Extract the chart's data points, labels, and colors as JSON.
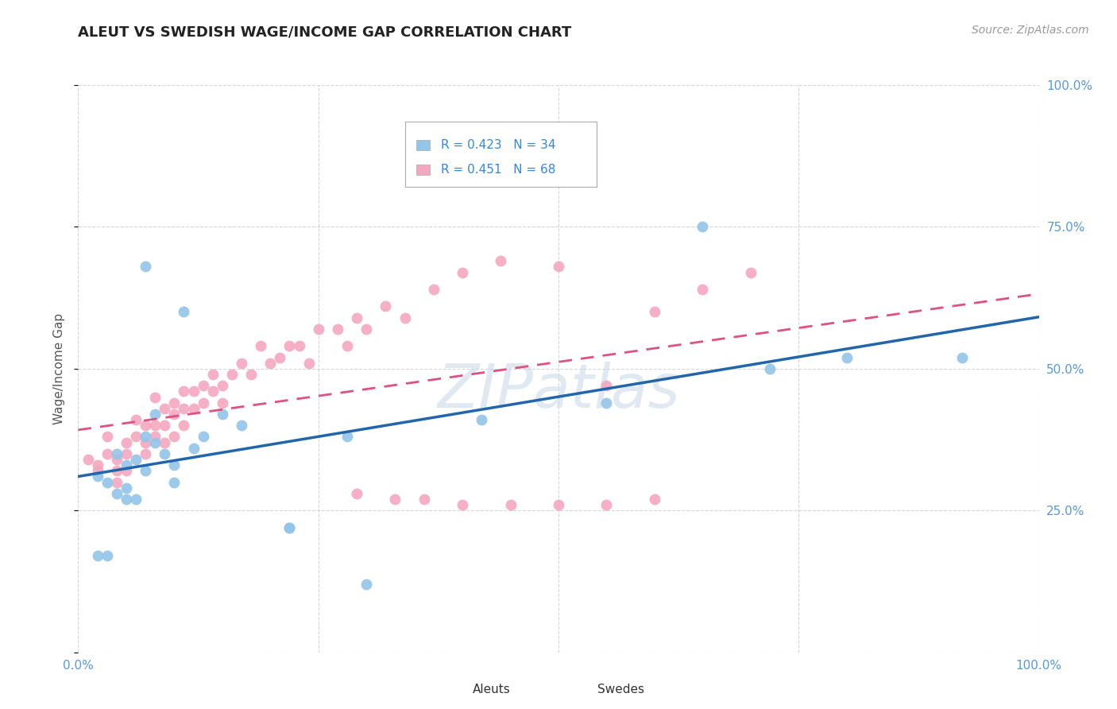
{
  "title": "ALEUT VS SWEDISH WAGE/INCOME GAP CORRELATION CHART",
  "source": "Source: ZipAtlas.com",
  "ylabel": "Wage/Income Gap",
  "xlim": [
    0.0,
    1.0
  ],
  "ylim": [
    0.0,
    1.0
  ],
  "legend_r_aleut": "0.423",
  "legend_n_aleut": "34",
  "legend_r_swede": "0.451",
  "legend_n_swede": "68",
  "aleut_color": "#92c5e8",
  "swede_color": "#f4a8c0",
  "trendline_aleut_color": "#2166ac",
  "trendline_swede_color": "#e05080",
  "background_color": "#ffffff",
  "grid_color": "#cccccc",
  "aleut_x": [
    0.02,
    0.03,
    0.04,
    0.04,
    0.05,
    0.05,
    0.05,
    0.06,
    0.06,
    0.07,
    0.07,
    0.08,
    0.08,
    0.09,
    0.1,
    0.1,
    0.11,
    0.12,
    0.13,
    0.15,
    0.17,
    0.22,
    0.22,
    0.28,
    0.42,
    0.55,
    0.65,
    0.72,
    0.8,
    0.92,
    0.02,
    0.03,
    0.07,
    0.3
  ],
  "aleut_y": [
    0.31,
    0.3,
    0.35,
    0.28,
    0.33,
    0.29,
    0.27,
    0.34,
    0.27,
    0.38,
    0.32,
    0.42,
    0.37,
    0.35,
    0.33,
    0.3,
    0.6,
    0.36,
    0.38,
    0.42,
    0.4,
    0.22,
    0.22,
    0.38,
    0.41,
    0.44,
    0.75,
    0.5,
    0.52,
    0.52,
    0.17,
    0.17,
    0.68,
    0.12
  ],
  "swede_x": [
    0.01,
    0.02,
    0.02,
    0.03,
    0.03,
    0.04,
    0.04,
    0.04,
    0.05,
    0.05,
    0.05,
    0.06,
    0.06,
    0.07,
    0.07,
    0.07,
    0.08,
    0.08,
    0.08,
    0.09,
    0.09,
    0.09,
    0.1,
    0.1,
    0.1,
    0.11,
    0.11,
    0.11,
    0.12,
    0.12,
    0.13,
    0.13,
    0.14,
    0.14,
    0.15,
    0.15,
    0.16,
    0.17,
    0.18,
    0.19,
    0.2,
    0.21,
    0.22,
    0.23,
    0.24,
    0.25,
    0.27,
    0.28,
    0.29,
    0.3,
    0.32,
    0.34,
    0.37,
    0.4,
    0.44,
    0.5,
    0.55,
    0.6,
    0.65,
    0.7,
    0.29,
    0.33,
    0.36,
    0.4,
    0.45,
    0.5,
    0.55,
    0.6
  ],
  "swede_y": [
    0.34,
    0.33,
    0.32,
    0.38,
    0.35,
    0.34,
    0.32,
    0.3,
    0.37,
    0.35,
    0.32,
    0.41,
    0.38,
    0.4,
    0.37,
    0.35,
    0.45,
    0.4,
    0.38,
    0.43,
    0.4,
    0.37,
    0.44,
    0.42,
    0.38,
    0.46,
    0.43,
    0.4,
    0.46,
    0.43,
    0.47,
    0.44,
    0.49,
    0.46,
    0.47,
    0.44,
    0.49,
    0.51,
    0.49,
    0.54,
    0.51,
    0.52,
    0.54,
    0.54,
    0.51,
    0.57,
    0.57,
    0.54,
    0.59,
    0.57,
    0.61,
    0.59,
    0.64,
    0.67,
    0.69,
    0.68,
    0.47,
    0.6,
    0.64,
    0.67,
    0.28,
    0.27,
    0.27,
    0.26,
    0.26,
    0.26,
    0.26,
    0.27
  ]
}
